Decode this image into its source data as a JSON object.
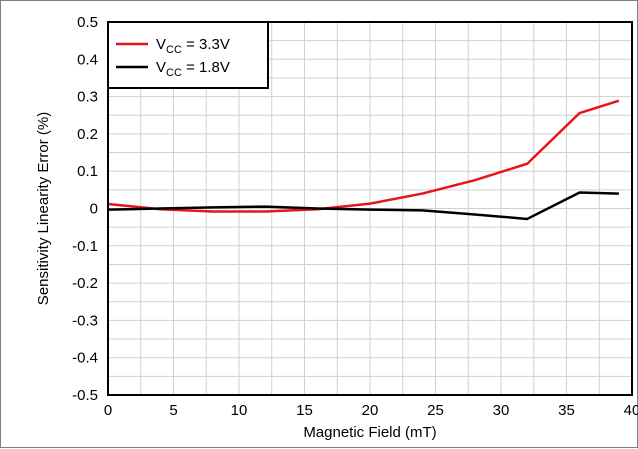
{
  "chart_data": {
    "type": "line",
    "title": "",
    "xlabel": "Magnetic Field (mT)",
    "ylabel": "Sensitivity Linearity Error (%)",
    "xlim": [
      0,
      40
    ],
    "ylim": [
      -0.5,
      0.5
    ],
    "x_ticks": [
      "0",
      "5",
      "10",
      "15",
      "20",
      "25",
      "30",
      "35",
      "40"
    ],
    "y_ticks": [
      "0.5",
      "0.4",
      "0.3",
      "0.2",
      "0.1",
      "0",
      "-0.1",
      "-0.2",
      "-0.3",
      "-0.4",
      "-0.5"
    ],
    "grid": true,
    "legend_position": "top-left",
    "series": [
      {
        "name_main": "V",
        "name_sub": "CC",
        "name_rest": " = 3.3V",
        "color": "#e8141b",
        "x": [
          0,
          4,
          8,
          12,
          16,
          20,
          24,
          28,
          32,
          36,
          39
        ],
        "y": [
          0.012,
          -0.002,
          -0.008,
          -0.008,
          -0.002,
          0.013,
          0.04,
          0.076,
          0.12,
          0.256,
          0.289
        ]
      },
      {
        "name_main": "V",
        "name_sub": "CC",
        "name_rest": " = 1.8V",
        "color": "#000000",
        "x": [
          0,
          4,
          8,
          12,
          16,
          20,
          24,
          28,
          32,
          36,
          39
        ],
        "y": [
          -0.003,
          0.0,
          0.003,
          0.005,
          0.0,
          -0.003,
          -0.005,
          -0.016,
          -0.028,
          0.043,
          0.04
        ]
      }
    ]
  }
}
